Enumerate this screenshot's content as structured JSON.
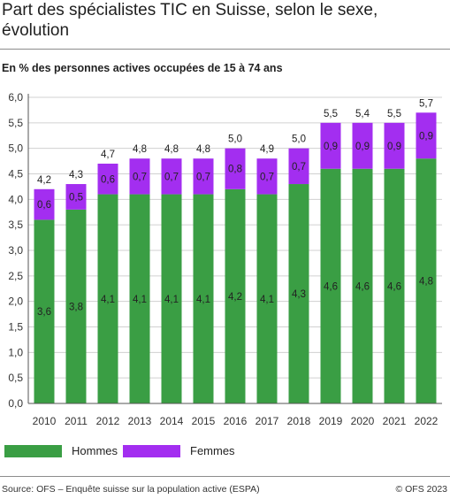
{
  "header": {
    "title": "Part des spécialistes TIC en Suisse, selon le sexe, évolution",
    "subtitle": "En % des personnes actives occupées de 15 à 74 ans"
  },
  "colors": {
    "hommes": "#3a9e44",
    "femmes": "#a32ef0",
    "grid": "#d0d0d0",
    "axis": "#555555"
  },
  "chart_data": {
    "type": "bar",
    "stacked": true,
    "categories": [
      "2010",
      "2011",
      "2012",
      "2013",
      "2014",
      "2015",
      "2016",
      "2017",
      "2018",
      "2019",
      "2020",
      "2021",
      "2022"
    ],
    "series": [
      {
        "name": "Hommes",
        "values": [
          3.6,
          3.8,
          4.1,
          4.1,
          4.1,
          4.1,
          4.2,
          4.1,
          4.3,
          4.6,
          4.6,
          4.6,
          4.8
        ],
        "labels": [
          "3,6",
          "3,8",
          "4,1",
          "4,1",
          "4,1",
          "4,1",
          "4,2",
          "4,1",
          "4,3",
          "4,6",
          "4,6",
          "4,6",
          "4,8"
        ]
      },
      {
        "name": "Femmes",
        "values": [
          0.6,
          0.5,
          0.6,
          0.7,
          0.7,
          0.7,
          0.8,
          0.7,
          0.7,
          0.9,
          0.9,
          0.9,
          0.9
        ],
        "labels": [
          "0,6",
          "0,5",
          "0,6",
          "0,7",
          "0,7",
          "0,7",
          "0,8",
          "0,7",
          "0,7",
          "0,9",
          "0,9",
          "0,9",
          "0,9"
        ]
      }
    ],
    "totals": [
      4.2,
      4.3,
      4.7,
      4.8,
      4.8,
      4.8,
      5.0,
      4.9,
      5.0,
      5.5,
      5.4,
      5.5,
      5.7
    ],
    "total_labels": [
      "4,2",
      "4,3",
      "4,7",
      "4,8",
      "4,8",
      "4,8",
      "5,0",
      "4,9",
      "5,0",
      "5,5",
      "5,4",
      "5,5",
      "5,7"
    ],
    "ylim": [
      0,
      6
    ],
    "yticks": [
      0,
      0.5,
      1,
      1.5,
      2,
      2.5,
      3,
      3.5,
      4,
      4.5,
      5,
      5.5,
      6
    ],
    "ytick_labels": [
      "0,0",
      "0,5",
      "1,0",
      "1,5",
      "2,0",
      "2,5",
      "3,0",
      "3,5",
      "4,0",
      "4,5",
      "5,0",
      "5,5",
      "6,0"
    ],
    "grid": true,
    "legend_position": "bottom-left"
  },
  "legend": [
    {
      "label": "Hommes"
    },
    {
      "label": "Femmes"
    }
  ],
  "footer": {
    "source": "Source: OFS – Enquête suisse sur la population active (ESPA)",
    "copyright": "© OFS 2023"
  }
}
